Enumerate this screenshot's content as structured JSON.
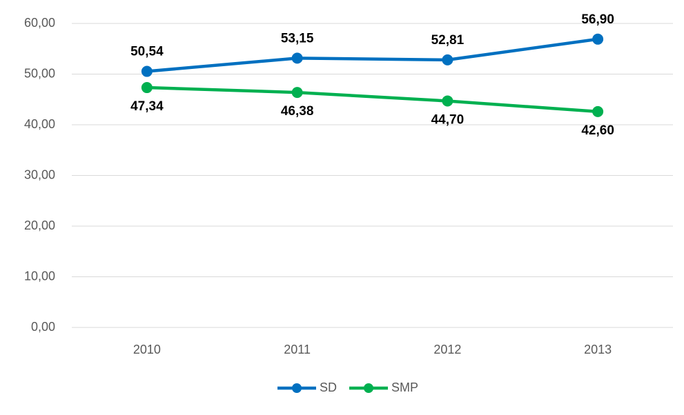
{
  "chart_data": {
    "type": "line",
    "categories": [
      "2010",
      "2011",
      "2012",
      "2013"
    ],
    "series": [
      {
        "name": "SD",
        "color": "#0070c0",
        "values": [
          50.54,
          53.15,
          52.81,
          56.9
        ],
        "value_labels": [
          "50,54",
          "53,15",
          "52,81",
          "56,90"
        ]
      },
      {
        "name": "SMP",
        "color": "#00b050",
        "values": [
          47.34,
          46.38,
          44.7,
          42.6
        ],
        "value_labels": [
          "47,34",
          "46,38",
          "44,70",
          "42,60"
        ]
      }
    ],
    "ylim": [
      0,
      60
    ],
    "yticks": [
      {
        "value": 0,
        "label": "0,00"
      },
      {
        "value": 10,
        "label": "10,00"
      },
      {
        "value": 20,
        "label": "20,00"
      },
      {
        "value": 30,
        "label": "30,00"
      },
      {
        "value": 40,
        "label": "40,00"
      },
      {
        "value": 50,
        "label": "50,00"
      },
      {
        "value": 60,
        "label": "60,00"
      }
    ],
    "grid": true,
    "legend": "bottom"
  }
}
